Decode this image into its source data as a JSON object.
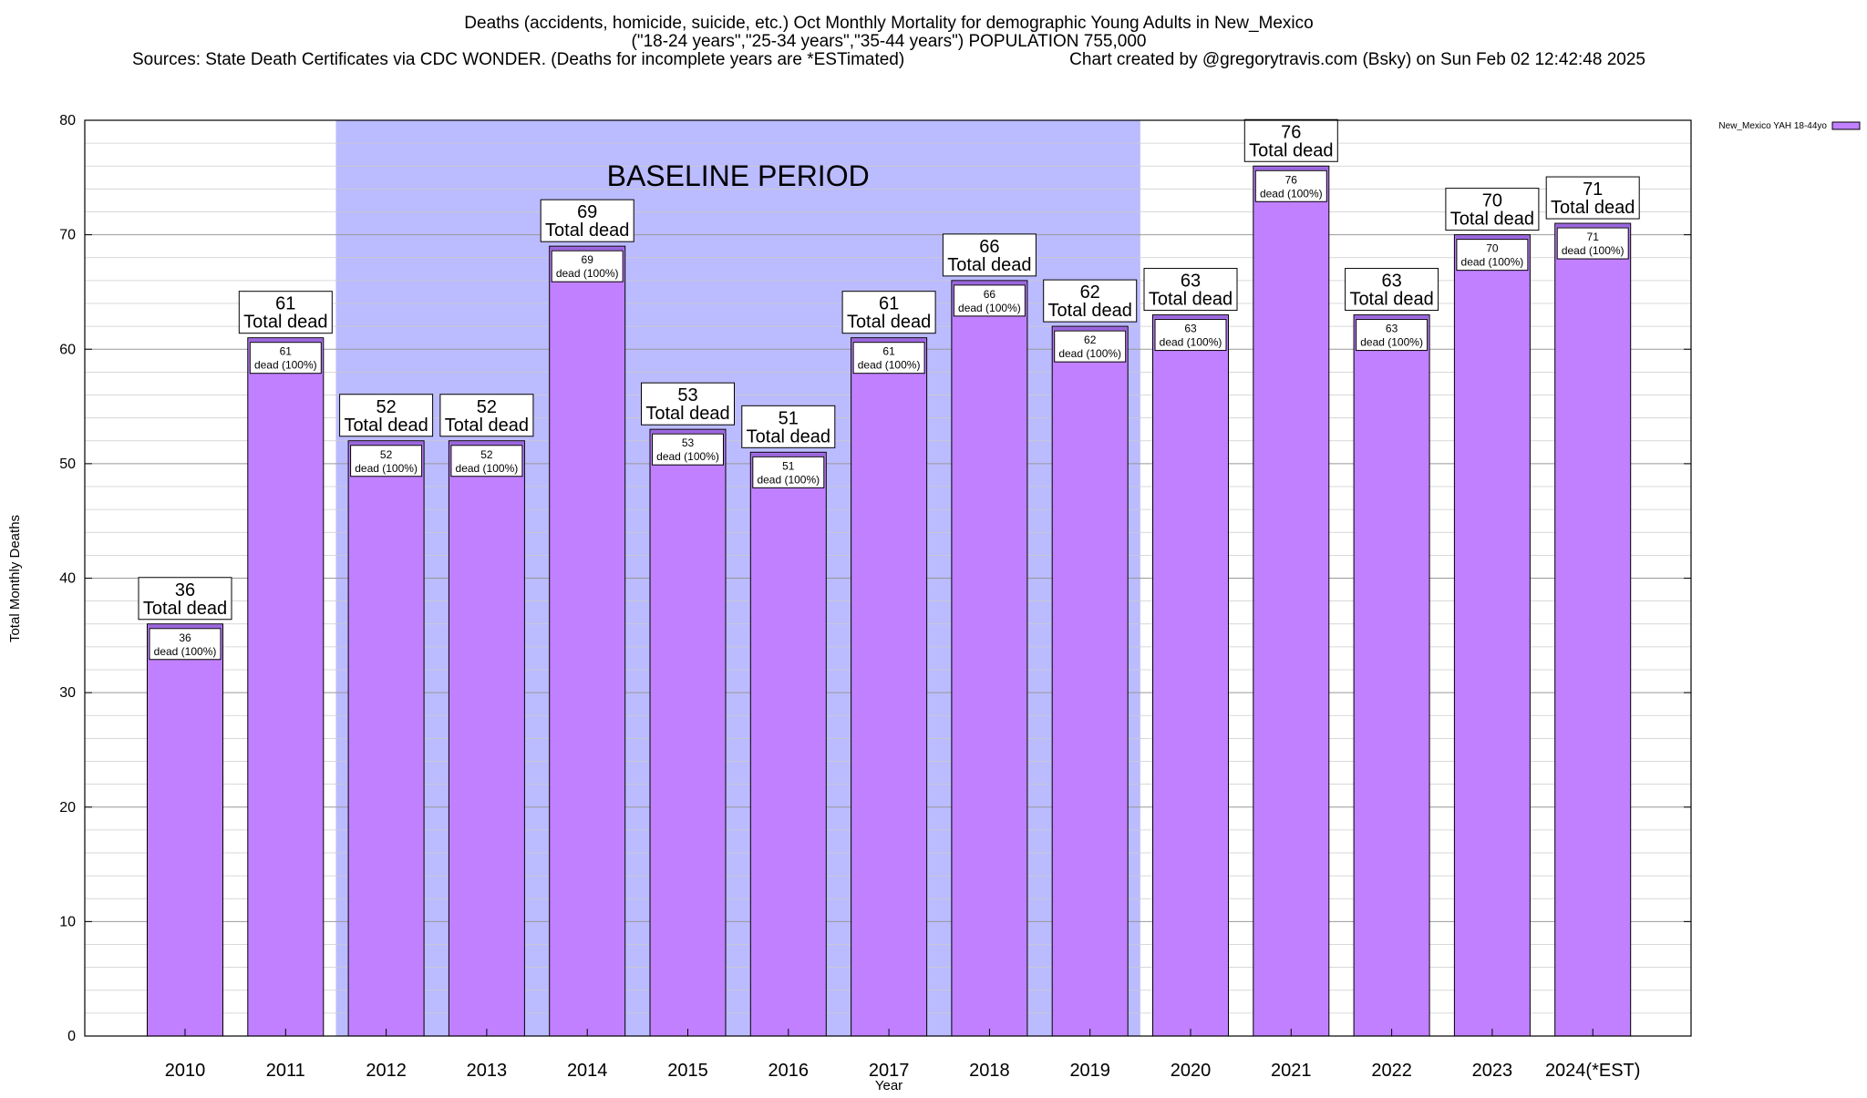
{
  "header": {
    "title_line1": "Deaths (accidents, homicide, suicide, etc.) Oct Monthly Mortality for demographic Young Adults in New_Mexico",
    "title_line2": "(\"18-24 years\",\"25-34 years\",\"35-44 years\") POPULATION 755,000",
    "sources": "Sources: State Death Certificates via CDC WONDER. (Deaths for incomplete years are *ESTimated)",
    "credit": "Chart created by @gregorytravis.com (Bsky) on Sun Feb 02 12:42:48 2025"
  },
  "chart_data": {
    "type": "bar",
    "categories": [
      "2010",
      "2011",
      "2012",
      "2013",
      "2014",
      "2015",
      "2016",
      "2017",
      "2018",
      "2019",
      "2020",
      "2021",
      "2022",
      "2023",
      "2024(*EST)"
    ],
    "series": [
      {
        "name": "New_Mexico YAH 18-44yo",
        "values": [
          36,
          61,
          52,
          52,
          69,
          53,
          51,
          61,
          66,
          62,
          63,
          76,
          63,
          70,
          71
        ]
      }
    ],
    "xlabel": "Year",
    "ylabel": "Total Monthly Deaths",
    "ylim": [
      0,
      80
    ],
    "yticks": [
      0,
      10,
      20,
      30,
      40,
      50,
      60,
      70,
      80
    ],
    "grid": true,
    "legend_position": "top-right",
    "baseline_period": {
      "label": "BASELINE PERIOD",
      "from": "2012",
      "to": "2019"
    },
    "bar_label_suffix": "Total dead",
    "inner_label_suffix": "dead (100%)",
    "colors": {
      "bar": "#c080ff",
      "bar_cap": "#9966dd",
      "baseline": "#bbbbff"
    }
  }
}
